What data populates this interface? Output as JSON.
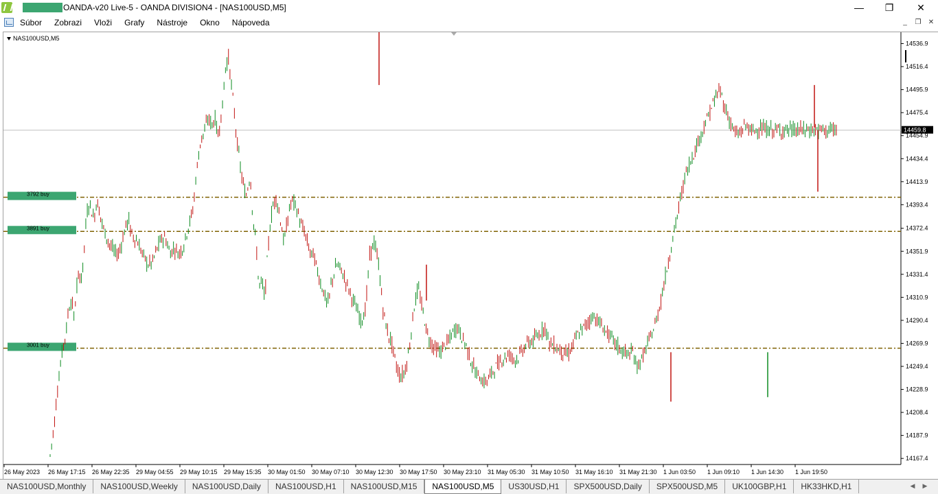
{
  "window": {
    "title": "OANDA-v20 Live-5 - OANDA DIVISION4 - [NAS100USD,M5]",
    "minimize_glyph": "—",
    "maximize_glyph": "❐",
    "close_glyph": "✕"
  },
  "menu": [
    "Súbor",
    "Zobrazi",
    "Vloži",
    "Grafy",
    "Nástroje",
    "Okno",
    "Nápoveda"
  ],
  "mdi_controls": [
    "_",
    "❐",
    "✕"
  ],
  "chart": {
    "symbol": "NAS100USD,M5",
    "current_price": "14459.8",
    "price_ticks": [
      "14536.9",
      "14516.4",
      "14495.9",
      "14475.4",
      "14454.9",
      "14434.4",
      "14413.9",
      "14393.4",
      "14372.4",
      "14351.9",
      "14331.4",
      "14310.9",
      "14290.4",
      "14269.9",
      "14249.4",
      "14228.9",
      "14208.4",
      "14187.9",
      "14167.4"
    ],
    "time_ticks": [
      "26 May 2023",
      "26 May 17:15",
      "26 May 22:35",
      "29 May 04:55",
      "29 May 10:15",
      "29 May 15:35",
      "30 May 01:50",
      "30 May 07:10",
      "30 May 12:30",
      "30 May 17:50",
      "30 May 23:10",
      "31 May 05:30",
      "31 May 10:50",
      "31 May 16:10",
      "31 May 21:30",
      "1 Jun 03:50",
      "1 Jun 09:10",
      "1 Jun 14:30",
      "1 Jun 19:50"
    ],
    "order_levels": [
      {
        "label": "3792 buy",
        "price": 14400.0
      },
      {
        "label": "3891 buy",
        "price": 14369.6
      },
      {
        "label": "3001 buy",
        "price": 14265.6
      }
    ],
    "colors": {
      "bull": "#0b8a1f",
      "bear": "#c0120f",
      "level": "#7f6000",
      "bidline": "#c0c0c0",
      "redaction": "#3ca671"
    }
  },
  "chart_data": {
    "type": "candlestick",
    "title": "NAS100USD,M5",
    "ylim": [
      14162,
      14547
    ],
    "x": [
      "26 May 2023",
      "26 May 17:15",
      "26 May 22:35",
      "29 May 04:55",
      "29 May 10:15",
      "29 May 15:35",
      "30 May 01:50",
      "30 May 07:10",
      "30 May 12:30",
      "30 May 17:50",
      "30 May 23:10",
      "31 May 05:30",
      "31 May 10:50",
      "31 May 16:10",
      "31 May 21:30",
      "1 Jun 03:50",
      "1 Jun 09:10",
      "1 Jun 14:30",
      "1 Jun 19:50"
    ],
    "path_x": [
      0,
      3,
      5,
      7,
      8.5,
      11,
      12.5,
      15,
      16,
      17,
      18,
      20,
      22,
      25,
      27,
      30,
      32,
      35,
      37,
      40,
      42,
      45,
      47,
      50,
      52,
      54,
      55,
      57,
      60,
      63,
      65,
      67,
      70,
      72,
      75,
      78,
      80,
      82,
      85,
      88,
      91,
      93,
      95,
      98,
      100,
      103,
      106,
      108,
      111,
      113,
      115,
      118,
      120,
      122,
      125,
      128,
      131,
      134,
      137,
      139,
      141,
      143,
      145,
      147,
      149,
      151,
      153,
      155,
      157,
      159,
      160,
      161,
      162,
      164,
      166,
      168,
      170,
      172,
      174,
      176,
      178,
      179,
      180,
      181,
      182,
      183,
      184,
      185,
      186,
      187,
      188,
      189,
      190,
      191,
      192,
      194,
      196,
      198,
      201,
      204,
      207,
      210,
      213,
      216,
      219,
      222,
      225,
      228,
      231,
      234,
      237,
      240,
      243,
      246,
      249,
      252,
      255,
      258,
      261,
      264,
      267,
      270,
      273,
      276,
      279,
      282,
      285,
      288,
      291,
      294,
      297,
      300,
      303,
      306,
      309,
      312,
      315,
      318,
      321,
      324,
      327,
      330,
      333,
      336,
      339,
      342,
      345,
      348,
      351,
      354,
      357,
      360,
      363,
      366,
      369,
      372,
      375,
      378,
      381,
      384,
      387,
      390,
      393,
      396,
      399,
      402,
      405,
      408,
      411,
      414,
      417,
      420,
      423,
      426,
      429,
      432,
      435,
      438,
      441,
      444,
      447,
      450,
      453,
      456,
      459,
      462,
      465,
      468,
      471,
      474,
      477,
      480,
      483,
      486,
      489,
      492,
      495,
      498,
      501,
      504,
      507,
      510,
      513,
      516,
      519,
      522,
      525,
      528,
      531,
      534,
      537,
      540,
      543,
      546,
      549,
      552,
      555,
      558,
      561,
      564,
      567,
      570
    ],
    "path_y": [
      14170,
      14200,
      14230,
      14250,
      14265,
      14280,
      14300,
      14310,
      14290,
      14300,
      14320,
      14330,
      14330,
      14385,
      14395,
      14380,
      14398,
      14380,
      14370,
      14360,
      14355,
      14350,
      14350,
      14365,
      14375,
      14380,
      14370,
      14365,
      14360,
      14350,
      14345,
      14340,
      14342,
      14350,
      14360,
      14365,
      14360,
      14350,
      14355,
      14350,
      14355,
      14365,
      14375,
      14390,
      14420,
      14450,
      14460,
      14470,
      14465,
      14470,
      14455,
      14480,
      14515,
      14525,
      14490,
      14450,
      14420,
      14400,
      14420,
      14380,
      14360,
      14320,
      14325,
      14310,
      14350,
      14380,
      14395,
      14400,
      14385,
      14370,
      14360,
      14365,
      14375,
      14390,
      14398,
      14392,
      14385,
      14375,
      14370,
      14360,
      14352,
      14348,
      14350,
      14346,
      14340,
      14335,
      14330,
      14325,
      14320,
      14318,
      14312,
      14308,
      14305,
      14308,
      14320,
      14330,
      14340,
      14338,
      14330,
      14320,
      14310,
      14300,
      14290,
      14300,
      14350,
      14360,
      14340,
      14300,
      14280,
      14270,
      14250,
      14240,
      14245,
      14265,
      14300,
      14320,
      14300,
      14280,
      14270,
      14265,
      14262,
      14268,
      14272,
      14280,
      14285,
      14275,
      14268,
      14255,
      14245,
      14240,
      14235,
      14238,
      14245,
      14250,
      14255,
      14258,
      14260,
      14255,
      14258,
      14265,
      14270,
      14272,
      14275,
      14280,
      14285,
      14270,
      14268,
      14265,
      14262,
      14260,
      14265,
      14275,
      14280,
      14285,
      14290,
      14295,
      14290,
      14285,
      14280,
      14275,
      14270,
      14265,
      14262,
      14260,
      14262,
      14250,
      14255,
      14265,
      14275,
      14285,
      14300,
      14320,
      14340,
      14360,
      14380,
      14400,
      14420,
      14430,
      14440,
      14450,
      14460,
      14470,
      14480,
      14490,
      14495,
      14480,
      14470,
      14460,
      14455,
      14460,
      14465,
      14458,
      14460,
      14462,
      14460,
      14460,
      14459.8,
      14459.8,
      14459.8,
      14459.8,
      14459.8,
      14459.8,
      14459.8,
      14459.8,
      14459.8,
      14459.8,
      14459.8,
      14459.8,
      14459.8,
      14459.8,
      14459.8,
      14459.8,
      14459.8,
      14459.8,
      14459.8
    ]
  },
  "tabs": [
    {
      "label": "NAS100USD,Monthly",
      "active": false
    },
    {
      "label": "NAS100USD,Weekly",
      "active": false
    },
    {
      "label": "NAS100USD,Daily",
      "active": false
    },
    {
      "label": "NAS100USD,H1",
      "active": false
    },
    {
      "label": "NAS100USD,M15",
      "active": false
    },
    {
      "label": "NAS100USD,M5",
      "active": true
    },
    {
      "label": "US30USD,H1",
      "active": false
    },
    {
      "label": "SPX500USD,Daily",
      "active": false
    },
    {
      "label": "SPX500USD,M5",
      "active": false
    },
    {
      "label": "UK100GBP,H1",
      "active": false
    },
    {
      "label": "HK33HKD,H1",
      "active": false
    }
  ],
  "tab_nav": [
    "◀",
    "▶"
  ]
}
